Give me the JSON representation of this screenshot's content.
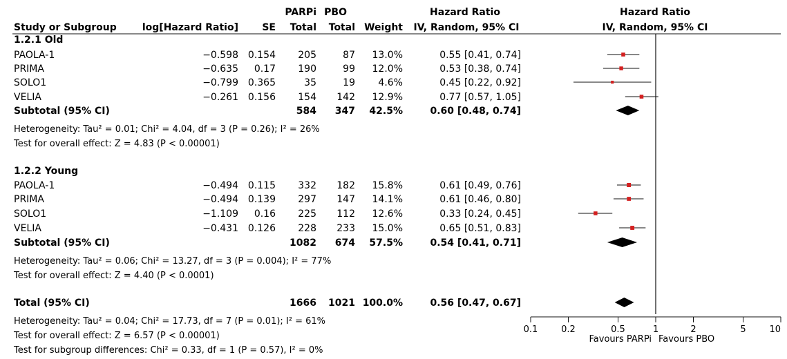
{
  "header": {
    "study": "Study or Subgroup",
    "loghr": "log[Hazard Ratio]",
    "se": "SE",
    "parpi_top": "PARPi",
    "parpi_bottom": "Total",
    "pbo_top": "PBO",
    "pbo_bottom": "Total",
    "weight": "Weight",
    "hr_top": "Hazard Ratio",
    "hr_bottom": "IV, Random, 95% CI",
    "plot_top": "Hazard Ratio",
    "plot_bottom": "IV, Random, 95% CI"
  },
  "footer": {
    "total_label": "Total (95% CI)",
    "total_parpi": "1666",
    "total_pbo": "1021",
    "total_weight": "100.0%",
    "total_ci": "0.56 [0.47, 0.67]",
    "total_het": "Heterogeneity: Tau² = 0.04; Chi² = 17.73, df = 7 (P = 0.01); I² = 61%",
    "total_test": "Test for overall effect: Z = 6.57 (P < 0.00001)",
    "subgroup_diff": "Test for subgroup differences: Chi² = 0.33, df = 1 (P = 0.57), I² = 0%",
    "favours_left": "Favours PARPi",
    "favours_right": "Favours PBO"
  },
  "colors": {
    "marker": "#d42020",
    "ink": "#111111",
    "diamond": "#000000"
  },
  "chart_data": {
    "type": "forest",
    "x_scale": "log",
    "xlim": [
      0.1,
      10
    ],
    "x_ticks": [
      0.1,
      0.2,
      0.5,
      1,
      2,
      5,
      10
    ],
    "x_tick_labels": [
      "0.1",
      "0.2",
      "0.5",
      "1",
      "2",
      "5",
      "10"
    ],
    "null_line": 1,
    "subgroups": [
      {
        "name": "1.2.1 Old",
        "studies": [
          {
            "study": "PAOLA-1",
            "loghr": "−0.598",
            "se": "0.154",
            "parpi": "205",
            "pbo": "87",
            "weight": "13.0%",
            "ci_text": "0.55 [0.41, 0.74]",
            "hr": 0.55,
            "lo": 0.41,
            "hi": 0.74,
            "w": 13.0
          },
          {
            "study": "PRIMA",
            "loghr": "−0.635",
            "se": "0.17",
            "parpi": "190",
            "pbo": "99",
            "weight": "12.0%",
            "ci_text": "0.53 [0.38, 0.74]",
            "hr": 0.53,
            "lo": 0.38,
            "hi": 0.74,
            "w": 12.0
          },
          {
            "study": "SOLO1",
            "loghr": "−0.799",
            "se": "0.365",
            "parpi": "35",
            "pbo": "19",
            "weight": "4.6%",
            "ci_text": "0.45 [0.22, 0.92]",
            "hr": 0.45,
            "lo": 0.22,
            "hi": 0.92,
            "w": 4.6
          },
          {
            "study": "VELIA",
            "loghr": "−0.261",
            "se": "0.156",
            "parpi": "154",
            "pbo": "142",
            "weight": "12.9%",
            "ci_text": "0.77 [0.57, 1.05]",
            "hr": 0.77,
            "lo": 0.57,
            "hi": 1.05,
            "w": 12.9
          }
        ],
        "subtotal": {
          "label": "Subtotal (95% CI)",
          "parpi": "584",
          "pbo": "347",
          "weight": "42.5%",
          "ci_text": "0.60 [0.48, 0.74]",
          "hr": 0.6,
          "lo": 0.48,
          "hi": 0.74
        },
        "heterogeneity": "Heterogeneity: Tau² = 0.01; Chi² = 4.04, df = 3 (P = 0.26); I² = 26%",
        "overall": "Test for overall effect: Z = 4.83 (P < 0.00001)"
      },
      {
        "name": "1.2.2 Young",
        "studies": [
          {
            "study": "PAOLA-1",
            "loghr": "−0.494",
            "se": "0.115",
            "parpi": "332",
            "pbo": "182",
            "weight": "15.8%",
            "ci_text": "0.61 [0.49, 0.76]",
            "hr": 0.61,
            "lo": 0.49,
            "hi": 0.76,
            "w": 15.8
          },
          {
            "study": "PRIMA",
            "loghr": "−0.494",
            "se": "0.139",
            "parpi": "297",
            "pbo": "147",
            "weight": "14.1%",
            "ci_text": "0.61 [0.46, 0.80]",
            "hr": 0.61,
            "lo": 0.46,
            "hi": 0.8,
            "w": 14.1
          },
          {
            "study": "SOLO1",
            "loghr": "−1.109",
            "se": "0.16",
            "parpi": "225",
            "pbo": "112",
            "weight": "12.6%",
            "ci_text": "0.33 [0.24, 0.45]",
            "hr": 0.33,
            "lo": 0.24,
            "hi": 0.45,
            "w": 12.6
          },
          {
            "study": "VELIA",
            "loghr": "−0.431",
            "se": "0.126",
            "parpi": "228",
            "pbo": "233",
            "weight": "15.0%",
            "ci_text": "0.65 [0.51, 0.83]",
            "hr": 0.65,
            "lo": 0.51,
            "hi": 0.83,
            "w": 15.0
          }
        ],
        "subtotal": {
          "label": "Subtotal (95% CI)",
          "parpi": "1082",
          "pbo": "674",
          "weight": "57.5%",
          "ci_text": "0.54 [0.41, 0.71]",
          "hr": 0.54,
          "lo": 0.41,
          "hi": 0.71
        },
        "heterogeneity": "Heterogeneity: Tau² = 0.06; Chi² = 13.27, df = 3 (P = 0.004); I² = 77%",
        "overall": "Test for overall effect: Z = 4.40 (P < 0.0001)"
      }
    ],
    "total": {
      "hr": 0.56,
      "lo": 0.47,
      "hi": 0.67
    }
  }
}
